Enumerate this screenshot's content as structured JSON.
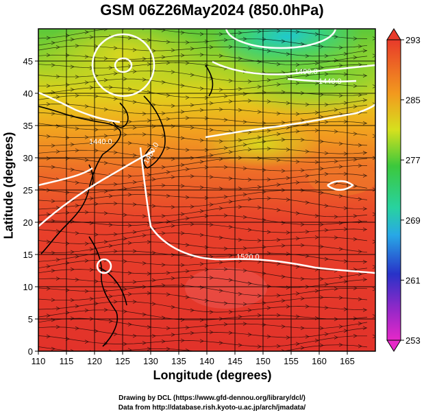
{
  "title": "GSM 06Z26May2024 (850.0hPa)",
  "xlabel": "Longitude (degrees)",
  "ylabel": "Latitude  (degrees)",
  "credit_line1": "Drawing by DCL (https://www.gfd-dennou.org/library/dcl/)",
  "credit_line2": "Data from http://database.rish.kyoto-u.ac.jp/arch/jmadata/",
  "x_ticks": [
    "110",
    "115",
    "120",
    "125",
    "130",
    "135",
    "140",
    "145",
    "150",
    "155",
    "160",
    "165"
  ],
  "y_ticks": [
    "0",
    "5",
    "10",
    "15",
    "20",
    "25",
    "30",
    "35",
    "40",
    "45"
  ],
  "colorbar_ticks": [
    "293",
    "285",
    "277",
    "269",
    "261",
    "253"
  ],
  "contour_labels": [
    "1520.0",
    "1440.0",
    "1480.0",
    "1400.0",
    "1440.0",
    "1480.0",
    "1520.0"
  ],
  "colors": {
    "warm": "#e8342a",
    "mid": "#f08a1e",
    "yellow": "#e6d21a",
    "green": "#3cc83c",
    "cyan": "#28c8e6",
    "blue": "#2828c8",
    "magenta": "#e628c8"
  },
  "chart_data": {
    "type": "heatmap",
    "variable": "temperature (K) with wind streamlines and geopotential height contours",
    "xlim": [
      110,
      170
    ],
    "ylim": [
      0,
      50
    ],
    "colorbar_range": [
      253,
      293
    ],
    "contour_levels": [
      1400,
      1440,
      1480,
      1520
    ]
  }
}
